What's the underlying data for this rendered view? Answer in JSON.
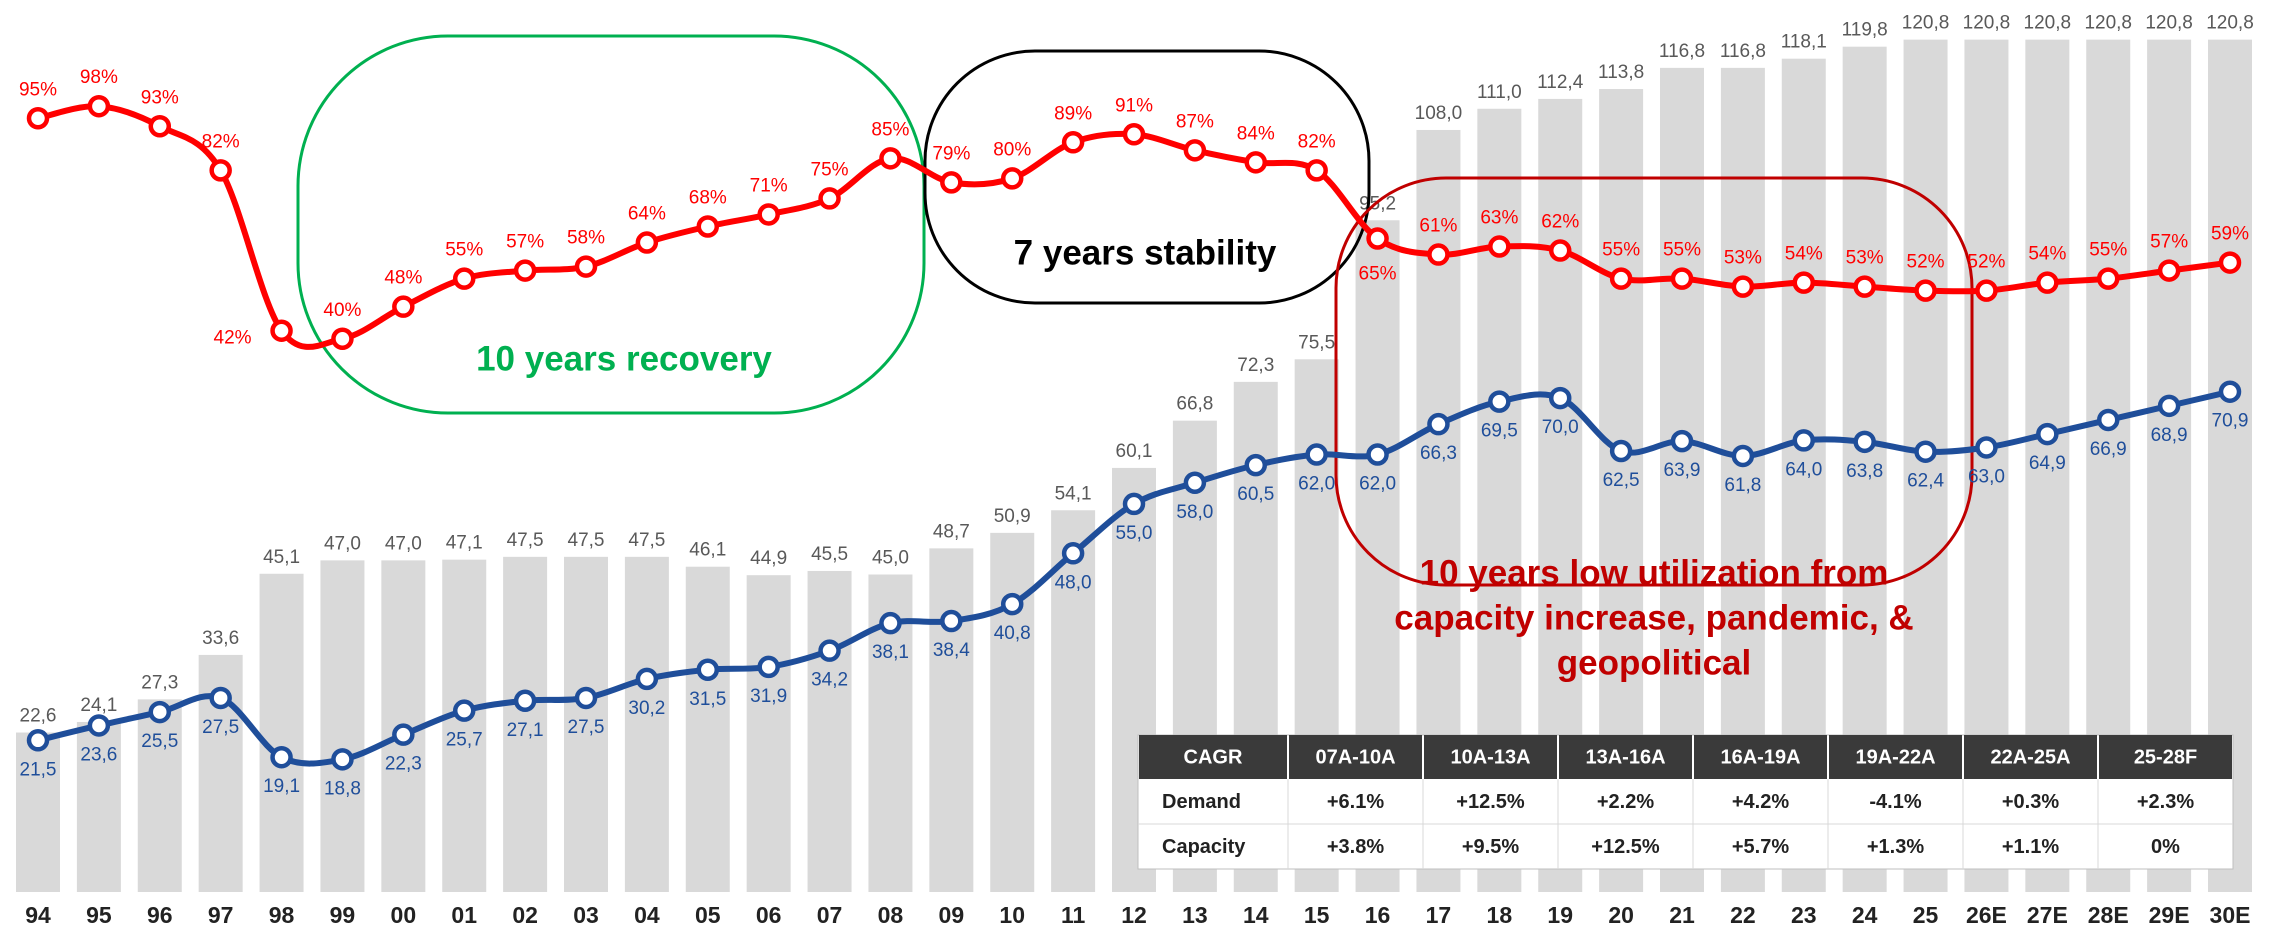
{
  "chart_data": {
    "type": "combo",
    "categories": [
      "94",
      "95",
      "96",
      "97",
      "98",
      "99",
      "00",
      "01",
      "02",
      "03",
      "04",
      "05",
      "06",
      "07",
      "08",
      "09",
      "10",
      "11",
      "12",
      "13",
      "14",
      "15",
      "16",
      "17",
      "18",
      "19",
      "20",
      "21",
      "22",
      "23",
      "24",
      "25",
      "26E",
      "27E",
      "28E",
      "29E",
      "30E"
    ],
    "ylim": [
      0,
      125
    ],
    "y2lim": [
      -98,
      122
    ],
    "series": [
      {
        "name": "Capacity",
        "type": "bar",
        "color": "#d9d9d9",
        "label_color": "#595959",
        "values": [
          22.6,
          24.1,
          27.3,
          33.6,
          45.1,
          47.0,
          47.0,
          47.1,
          47.5,
          47.5,
          47.5,
          46.1,
          44.9,
          45.5,
          45.0,
          48.7,
          50.9,
          54.1,
          60.1,
          66.8,
          72.3,
          75.5,
          95.2,
          108.0,
          111.0,
          112.4,
          113.8,
          116.8,
          116.8,
          118.1,
          119.8,
          120.8,
          120.8,
          120.8,
          120.8,
          120.8,
          120.8
        ],
        "value_labels": [
          "22,6",
          "24,1",
          "27,3",
          "33,6",
          "45,1",
          "47,0",
          "47,0",
          "47,1",
          "47,5",
          "47,5",
          "47,5",
          "46,1",
          "44,9",
          "45,5",
          "45,0",
          "48,7",
          "50,9",
          "54,1",
          "60,1",
          "66,8",
          "72,3",
          "75,5",
          "95,2",
          "108,0",
          "111,0",
          "112,4",
          "113,8",
          "116,8",
          "116,8",
          "118,1",
          "119,8",
          "120,8",
          "120,8",
          "120,8",
          "120,8",
          "120,8",
          "120,8"
        ]
      },
      {
        "name": "Demand",
        "type": "line",
        "color": "#1f4e9a",
        "label_color": "#1f4e9a",
        "values": [
          21.5,
          23.6,
          25.5,
          27.5,
          19.1,
          18.8,
          22.3,
          25.7,
          27.1,
          27.5,
          30.2,
          31.5,
          31.9,
          34.2,
          38.1,
          38.4,
          40.8,
          48.0,
          55.0,
          58.0,
          60.5,
          62.0,
          62.0,
          66.3,
          69.5,
          70.0,
          62.5,
          63.9,
          61.8,
          64.0,
          63.8,
          62.4,
          63.0,
          64.9,
          66.9,
          68.9,
          70.9
        ],
        "value_labels": [
          "21,5",
          "23,6",
          "25,5",
          "27,5",
          "19,1",
          "18,8",
          "22,3",
          "25,7",
          "27,1",
          "27,5",
          "30,2",
          "31,5",
          "31,9",
          "34,2",
          "38,1",
          "38,4",
          "40,8",
          "48,0",
          "55,0",
          "58,0",
          "60,5",
          "62,0",
          "62,0",
          "66,3",
          "69,5",
          "70,0",
          "62,5",
          "63,9",
          "61,8",
          "64,0",
          "63,8",
          "62,4",
          "63,0",
          "64,9",
          "66,9",
          "68,9",
          "70,9"
        ]
      },
      {
        "type": "line",
        "axis": "y2",
        "color": "#ff0000",
        "label_color": "#ff0000",
        "values": [
          95,
          98,
          93,
          82,
          42,
          40,
          48,
          55,
          57,
          58,
          64,
          68,
          71,
          75,
          85,
          79,
          80,
          89,
          91,
          87,
          84,
          82,
          65,
          61,
          63,
          62,
          55,
          55,
          53,
          54,
          53,
          52,
          52,
          54,
          55,
          57,
          59
        ],
        "value_labels": [
          "95%",
          "98%",
          "93%",
          "82%",
          "42%",
          "40%",
          "48%",
          "55%",
          "57%",
          "58%",
          "64%",
          "68%",
          "71%",
          "75%",
          "85%",
          "79%",
          "80%",
          "89%",
          "91%",
          "87%",
          "84%",
          "82%",
          "65%",
          "61%",
          "63%",
          "62%",
          "55%",
          "55%",
          "53%",
          "54%",
          "53%",
          "52%",
          "52%",
          "54%",
          "55%",
          "57%",
          "59%"
        ]
      }
    ],
    "annotations": {
      "recovery": {
        "text": "10 years recovery",
        "color": "#00b050"
      },
      "stability": {
        "text": "7 years stability",
        "color": "#000000"
      },
      "low_utilization": {
        "lines": [
          "10 years low utilization from",
          "capacity increase, pandemic, &",
          "geopolitical"
        ],
        "color": "#c00000"
      }
    },
    "table": {
      "header": [
        "CAGR",
        "07A-10A",
        "10A-13A",
        "13A-16A",
        "16A-19A",
        "19A-22A",
        "22A-25A",
        "25-28F"
      ],
      "rows": [
        [
          "Demand",
          "+6.1%",
          "+12.5%",
          "+2.2%",
          "+4.2%",
          "-4.1%",
          "+0.3%",
          "+2.3%"
        ],
        [
          "Capacity",
          "+3.8%",
          "+9.5%",
          "+12.5%",
          "+5.7%",
          "+1.3%",
          "+1.1%",
          "0%"
        ]
      ],
      "header_color": "#3a3a3a",
      "negative_color": "#e8006f"
    }
  }
}
